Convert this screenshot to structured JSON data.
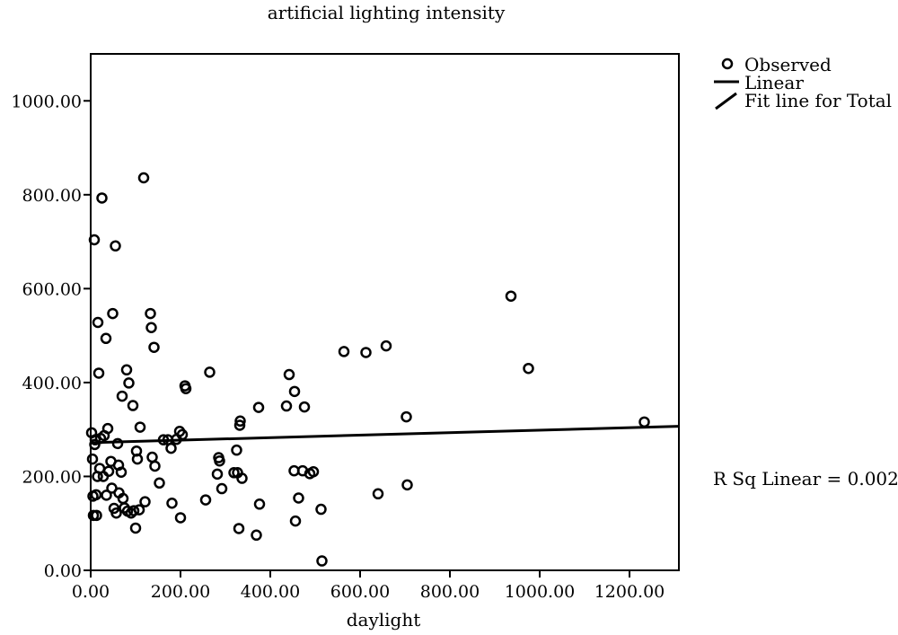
{
  "chart_data": {
    "type": "scatter",
    "title": "artificial lighting intensity",
    "xlabel": "daylight",
    "ylabel": "",
    "xlim": [
      0,
      1310
    ],
    "ylim": [
      0,
      1100
    ],
    "xticks": [
      0,
      200,
      400,
      600,
      800,
      1000,
      1200
    ],
    "yticks": [
      0,
      200,
      400,
      600,
      800,
      1000
    ],
    "tick_labels_x": [
      "0.00",
      "200.00",
      "400.00",
      "600.00",
      "800.00",
      "1000.00",
      "1200.00"
    ],
    "tick_labels_y": [
      "0.00",
      "200.00",
      "400.00",
      "600.00",
      "800.00",
      "1000.00"
    ],
    "grid": false,
    "legend_position": "top-right, outside plot",
    "legend": {
      "observed": "Observed",
      "linear": "Linear",
      "fit": "Fit line for Total"
    },
    "annotation": "R Sq Linear = 0.002",
    "fit_line": {
      "intercept": 272,
      "slope": 0.0265
    },
    "series": [
      {
        "name": "Observed",
        "points": [
          [
            2,
            293
          ],
          [
            4,
            237
          ],
          [
            5,
            158
          ],
          [
            6,
            117
          ],
          [
            8,
            704
          ],
          [
            9,
            268
          ],
          [
            10,
            278
          ],
          [
            12,
            161
          ],
          [
            13,
            117
          ],
          [
            15,
            200
          ],
          [
            16,
            528
          ],
          [
            18,
            420
          ],
          [
            20,
            217
          ],
          [
            22,
            281
          ],
          [
            25,
            793
          ],
          [
            28,
            200
          ],
          [
            30,
            287
          ],
          [
            34,
            494
          ],
          [
            35,
            160
          ],
          [
            38,
            302
          ],
          [
            40,
            211
          ],
          [
            45,
            232
          ],
          [
            47,
            175
          ],
          [
            49,
            547
          ],
          [
            52,
            132
          ],
          [
            55,
            691
          ],
          [
            57,
            122
          ],
          [
            60,
            270
          ],
          [
            62,
            224
          ],
          [
            63,
            165
          ],
          [
            68,
            209
          ],
          [
            70,
            371
          ],
          [
            72,
            153
          ],
          [
            75,
            133
          ],
          [
            80,
            427
          ],
          [
            82,
            126
          ],
          [
            85,
            399
          ],
          [
            90,
            122
          ],
          [
            94,
            351
          ],
          [
            96,
            127
          ],
          [
            100,
            90
          ],
          [
            102,
            254
          ],
          [
            104,
            237
          ],
          [
            108,
            129
          ],
          [
            110,
            305
          ],
          [
            118,
            836
          ],
          [
            121,
            146
          ],
          [
            133,
            547
          ],
          [
            135,
            517
          ],
          [
            137,
            241
          ],
          [
            141,
            475
          ],
          [
            143,
            222
          ],
          [
            153,
            186
          ],
          [
            162,
            278
          ],
          [
            172,
            278
          ],
          [
            179,
            260
          ],
          [
            181,
            143
          ],
          [
            191,
            279
          ],
          [
            198,
            296
          ],
          [
            200,
            112
          ],
          [
            204,
            289
          ],
          [
            210,
            393
          ],
          [
            212,
            387
          ],
          [
            256,
            150
          ],
          [
            265,
            422
          ],
          [
            282,
            205
          ],
          [
            285,
            240
          ],
          [
            287,
            233
          ],
          [
            292,
            174
          ],
          [
            319,
            208
          ],
          [
            325,
            256
          ],
          [
            327,
            208
          ],
          [
            330,
            89
          ],
          [
            332,
            309
          ],
          [
            333,
            318
          ],
          [
            337,
            196
          ],
          [
            369,
            75
          ],
          [
            374,
            347
          ],
          [
            376,
            141
          ],
          [
            436,
            350
          ],
          [
            442,
            417
          ],
          [
            453,
            212
          ],
          [
            454,
            381
          ],
          [
            456,
            105
          ],
          [
            463,
            154
          ],
          [
            472,
            212
          ],
          [
            476,
            348
          ],
          [
            488,
            206
          ],
          [
            496,
            210
          ],
          [
            513,
            130
          ],
          [
            515,
            20
          ],
          [
            564,
            466
          ],
          [
            613,
            464
          ],
          [
            640,
            163
          ],
          [
            658,
            478
          ],
          [
            703,
            327
          ],
          [
            705,
            182
          ],
          [
            936,
            584
          ],
          [
            975,
            430
          ],
          [
            1233,
            316
          ]
        ]
      }
    ]
  }
}
